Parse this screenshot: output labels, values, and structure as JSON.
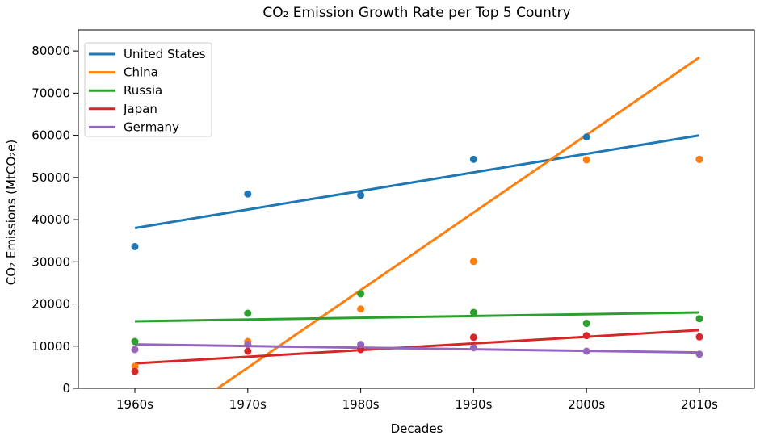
{
  "chart_data": {
    "type": "scatter",
    "title": "CO₂ Emission Growth Rate per Top 5 Country",
    "xlabel": "Decades",
    "ylabel": "CO₂ Emissions (MtCO₂e)",
    "categories": [
      "1960s",
      "1970s",
      "1980s",
      "1990s",
      "2000s",
      "2010s"
    ],
    "ylim": [
      0,
      85000
    ],
    "yticks": [
      0,
      10000,
      20000,
      30000,
      40000,
      50000,
      60000,
      70000,
      80000
    ],
    "grid": false,
    "legend": "top-left",
    "series": [
      {
        "name": "United States",
        "color": "#1f77b4",
        "values": [
          33600,
          46100,
          45800,
          54300,
          59600,
          54300
        ],
        "trend": [
          38000,
          60000
        ]
      },
      {
        "name": "China",
        "color": "#ff7f0e",
        "values": [
          5200,
          11100,
          18800,
          30100,
          54200,
          54300
        ],
        "trend": [
          -13500,
          78500
        ]
      },
      {
        "name": "Russia",
        "color": "#2ca02c",
        "values": [
          11100,
          17800,
          22400,
          18000,
          15400,
          16500
        ],
        "trend": [
          15900,
          18000
        ]
      },
      {
        "name": "Japan",
        "color": "#d62728",
        "values": [
          4000,
          8800,
          9200,
          12100,
          12500,
          12200
        ],
        "trend": [
          5900,
          13800
        ]
      },
      {
        "name": "Germany",
        "color": "#9467bd",
        "values": [
          9200,
          10400,
          10400,
          9600,
          8800,
          8100
        ],
        "trend": [
          10400,
          8500
        ]
      }
    ]
  }
}
